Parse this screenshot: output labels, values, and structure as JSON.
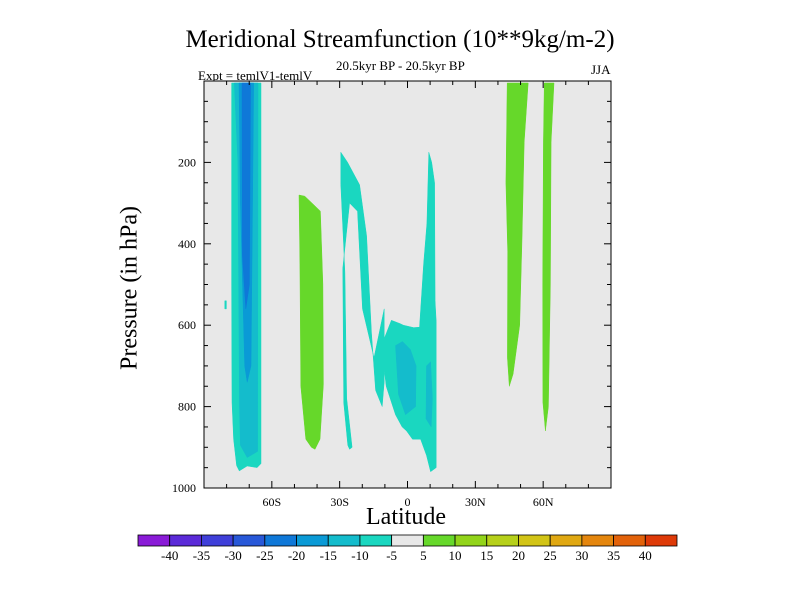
{
  "chart_data": {
    "type": "filled-contour",
    "title": "Meridional Streamfunction (10**9kg/m-2)",
    "subtitle_left": "Expt = temlV1-temlV",
    "subtitle_center": "20.5kyr BP - 20.5kyr BP",
    "subtitle_right": "JJA",
    "xlabel": "Latitude",
    "ylabel": "Pressure (in hPa)",
    "xlim": [
      -90,
      90
    ],
    "ylim": [
      1000,
      0
    ],
    "xticks": [
      {
        "value": -60,
        "label": "60S"
      },
      {
        "value": -30,
        "label": "30S"
      },
      {
        "value": 0,
        "label": "0"
      },
      {
        "value": 30,
        "label": "30N"
      },
      {
        "value": 60,
        "label": "60N"
      }
    ],
    "yticks": [
      {
        "value": 200,
        "label": "200"
      },
      {
        "value": 400,
        "label": "400"
      },
      {
        "value": 600,
        "label": "600"
      },
      {
        "value": 800,
        "label": "800"
      },
      {
        "value": 1000,
        "label": "1000"
      }
    ],
    "background_color": "#e8e8e8",
    "contour_levels": [
      -40,
      -35,
      -30,
      -25,
      -20,
      -15,
      -10,
      -5,
      5,
      10,
      15,
      20,
      25,
      30,
      35,
      40
    ],
    "colorbar_colors": [
      "#8a1bd7",
      "#5b2ad8",
      "#3f3fd9",
      "#2858d8",
      "#0f78d8",
      "#0a9ad6",
      "#14bccc",
      "#1ad7c0",
      "#e8e8e8",
      "#66d82a",
      "#92d41a",
      "#b6d01a",
      "#d2c416",
      "#e0a812",
      "#e4860e",
      "#e2620a",
      "#de3a08"
    ],
    "regions": [
      {
        "name": "polar-sh-cell",
        "value_range": [
          -15,
          -10
        ],
        "color": "#1ad7c0",
        "points": [
          [
            -77.8,
            5
          ],
          [
            -64.8,
            5
          ],
          [
            -64.8,
            940
          ],
          [
            -66.5,
            950
          ],
          [
            -70.9,
            946
          ],
          [
            -74.4,
            958
          ],
          [
            -75.6,
            945
          ],
          [
            -76.9,
            880
          ],
          [
            -77.6,
            790
          ],
          [
            -77.8,
            500
          ]
        ]
      },
      {
        "name": "polar-sh-cell-mid",
        "value_range": [
          -20,
          -15
        ],
        "color": "#14bccc",
        "points": [
          [
            -76.6,
            5
          ],
          [
            -66.1,
            5
          ],
          [
            -66.3,
            910
          ],
          [
            -70.9,
            925
          ],
          [
            -73.9,
            895
          ],
          [
            -74.3,
            800
          ],
          [
            -75.0,
            200
          ]
        ]
      },
      {
        "name": "polar-sh-cell-core",
        "value_range": [
          -25,
          -20
        ],
        "color": "#0a9ad6",
        "points": [
          [
            -74.5,
            5
          ],
          [
            -68.0,
            5
          ],
          [
            -69.2,
            700
          ],
          [
            -70.9,
            740
          ],
          [
            -72.0,
            700
          ],
          [
            -73.9,
            300
          ]
        ]
      },
      {
        "name": "polar-sh-cell-inner",
        "value_range": [
          -30,
          -25
        ],
        "color": "#0f78d8",
        "points": [
          [
            -73.2,
            5
          ],
          [
            -69.4,
            5
          ],
          [
            -69.9,
            500
          ],
          [
            -71.5,
            560
          ],
          [
            -73.0,
            430
          ]
        ]
      },
      {
        "name": "isolated-dot",
        "value_range": [
          -15,
          -10
        ],
        "color": "#1ad7c0",
        "points": [
          [
            -80.8,
            540
          ],
          [
            -80.1,
            540
          ],
          [
            -80.1,
            560
          ],
          [
            -80.8,
            560
          ]
        ]
      },
      {
        "name": "mid-sh-positive",
        "value_range": [
          5,
          10
        ],
        "color": "#66d82a",
        "points": [
          [
            -48.0,
            280
          ],
          [
            -45.4,
            283
          ],
          [
            -38.5,
            320
          ],
          [
            -37.4,
            500
          ],
          [
            -37.2,
            745
          ],
          [
            -38.7,
            880
          ],
          [
            -40.9,
            905
          ],
          [
            -42.5,
            900
          ],
          [
            -45.0,
            880
          ],
          [
            -47.2,
            750
          ],
          [
            -47.6,
            450
          ]
        ]
      },
      {
        "name": "subtropical-sh-negative",
        "value_range": [
          -15,
          -10
        ],
        "color": "#1ad7c0",
        "points": [
          [
            -29.5,
            175
          ],
          [
            -26.5,
            200
          ],
          [
            -21.2,
            255
          ],
          [
            -18.1,
            380
          ],
          [
            -15.9,
            620
          ],
          [
            -14.1,
            760
          ],
          [
            -11.2,
            800
          ],
          [
            -10.3,
            740
          ],
          [
            -10.3,
            560
          ],
          [
            -14.8,
            680
          ],
          [
            -19.9,
            560
          ],
          [
            -22.1,
            320
          ],
          [
            -25.6,
            300
          ],
          [
            -28.6,
            460
          ],
          [
            -28.2,
            790
          ],
          [
            -26.4,
            895
          ],
          [
            -25.6,
            905
          ],
          [
            -24.5,
            900
          ],
          [
            -26.9,
            780
          ],
          [
            -27.7,
            470
          ],
          [
            -29.5,
            255
          ]
        ]
      },
      {
        "name": "equatorial-negative",
        "value_range": [
          -15,
          -10
        ],
        "color": "#1ad7c0",
        "points": [
          [
            -10.8,
            640
          ],
          [
            -7.1,
            588
          ],
          [
            -3.3,
            596
          ],
          [
            -1.8,
            600
          ],
          [
            2.7,
            606
          ],
          [
            5.3,
            605
          ],
          [
            7.1,
            450
          ],
          [
            8.6,
            350
          ],
          [
            9.4,
            175
          ],
          [
            10.7,
            200
          ],
          [
            12.0,
            250
          ],
          [
            12.2,
            540
          ],
          [
            12.7,
            590
          ],
          [
            12.7,
            950
          ],
          [
            10.2,
            960
          ],
          [
            8.4,
            920
          ],
          [
            5.8,
            880
          ],
          [
            2.2,
            880
          ],
          [
            -0.4,
            860
          ],
          [
            -2.4,
            850
          ],
          [
            -5.3,
            820
          ],
          [
            -9.4,
            750
          ],
          [
            -10.9,
            680
          ]
        ]
      },
      {
        "name": "equatorial-negative-core",
        "value_range": [
          -20,
          -15
        ],
        "color": "#14bccc",
        "points": [
          [
            -5.3,
            650
          ],
          [
            -2.2,
            640
          ],
          [
            1.3,
            660
          ],
          [
            3.8,
            700
          ],
          [
            3.6,
            800
          ],
          [
            -0.9,
            820
          ],
          [
            -4.0,
            770
          ]
        ]
      },
      {
        "name": "equatorial-negative-core-2",
        "value_range": [
          -20,
          -15
        ],
        "color": "#14bccc",
        "points": [
          [
            8.4,
            700
          ],
          [
            10.2,
            690
          ],
          [
            11.0,
            780
          ],
          [
            10.5,
            850
          ],
          [
            8.2,
            830
          ]
        ]
      },
      {
        "name": "nh-midlat-positive",
        "value_range": [
          5,
          10
        ],
        "color": "#66d82a",
        "points": [
          [
            44.1,
            5
          ],
          [
            53.4,
            5
          ],
          [
            51.6,
            150
          ],
          [
            50.6,
            400
          ],
          [
            49.6,
            600
          ],
          [
            46.7,
            720
          ],
          [
            45.0,
            750
          ],
          [
            44.2,
            680
          ],
          [
            44.3,
            420
          ],
          [
            43.5,
            250
          ]
        ]
      },
      {
        "name": "nh-highlat-positive",
        "value_range": [
          5,
          10
        ],
        "color": "#66d82a",
        "points": [
          [
            60.5,
            5
          ],
          [
            64.8,
            5
          ],
          [
            63.5,
            150
          ],
          [
            63.2,
            500
          ],
          [
            62.3,
            800
          ],
          [
            61.0,
            860
          ],
          [
            59.9,
            790
          ],
          [
            59.8,
            500
          ],
          [
            60.1,
            150
          ]
        ]
      }
    ]
  }
}
